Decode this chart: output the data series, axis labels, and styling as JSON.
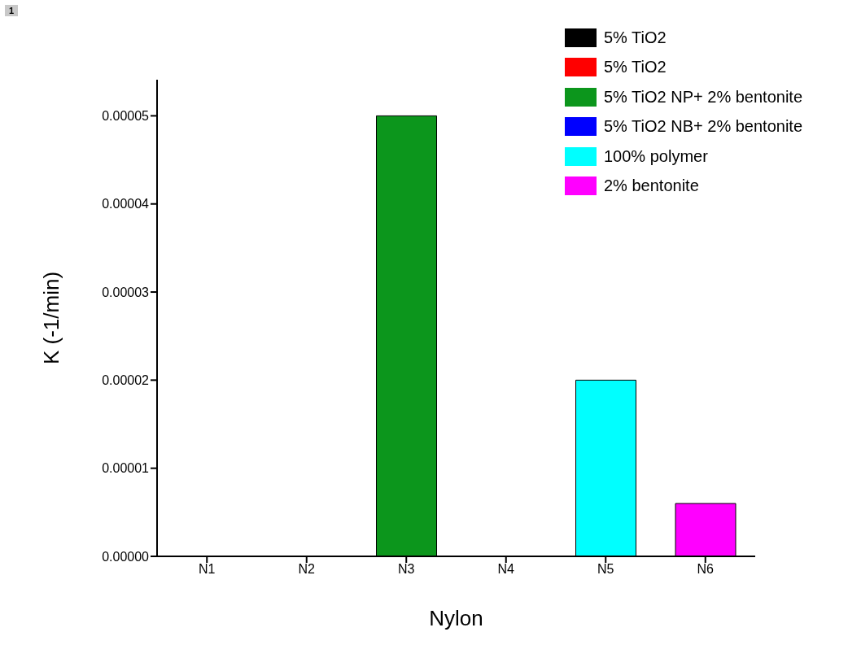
{
  "chart_data": {
    "type": "bar",
    "xlabel": "Nylon",
    "ylabel": "K (-1/min)",
    "annotations": [
      "1"
    ],
    "categories": [
      "N1",
      "N2",
      "N3",
      "N4",
      "N5",
      "N6"
    ],
    "stacked": true,
    "series": [
      {
        "name": "5% TiO2",
        "color": "#000000",
        "values": [
          0,
          null,
          null,
          null,
          null,
          null
        ]
      },
      {
        "name": "5% TiO2",
        "color": "#ff0000",
        "values": [
          null,
          0,
          null,
          null,
          null,
          null
        ]
      },
      {
        "name": "5% TiO2 NP+ 2% bentonite",
        "color": "#0c961c",
        "values": [
          null,
          null,
          5e-05,
          null,
          null,
          null
        ]
      },
      {
        "name": "5% TiO2 NB+ 2% bentonite",
        "color": "#0000ff",
        "values": [
          null,
          null,
          null,
          0,
          null,
          null
        ]
      },
      {
        "name": "100% polymer",
        "color": "#00ffff",
        "values": [
          null,
          null,
          null,
          null,
          2e-05,
          null
        ]
      },
      {
        "name": "2% bentonite",
        "color": "#ff00ff",
        "values": [
          null,
          null,
          null,
          null,
          null,
          6e-06
        ]
      }
    ],
    "ylim": [
      0,
      5.41e-05
    ],
    "yticks": [
      {
        "value": 0,
        "label": "0.00000"
      },
      {
        "value": 1e-05,
        "label": "0.00001"
      },
      {
        "value": 2e-05,
        "label": "0.00002"
      },
      {
        "value": 3e-05,
        "label": "0.00003"
      },
      {
        "value": 4e-05,
        "label": "0.00004"
      },
      {
        "value": 5e-05,
        "label": "0.00005"
      }
    ],
    "legend": "top right"
  }
}
